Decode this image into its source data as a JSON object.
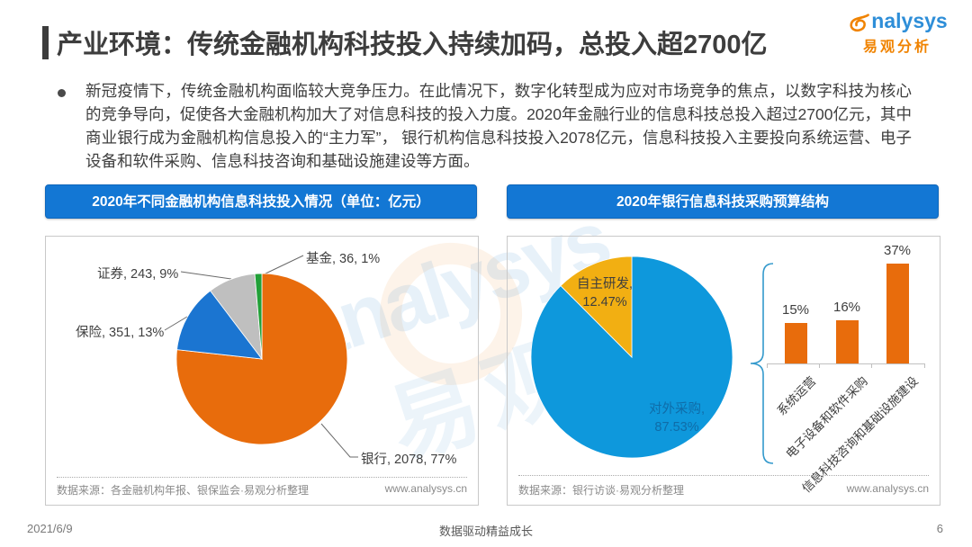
{
  "header": {
    "title": "产业环境：传统金融机构科技投入持续加码，总投入超2700亿",
    "logo": {
      "wordmark_tail": "nalysys",
      "wordmark_full": "analysys",
      "subtitle": "易观分析",
      "brand_blue": "#2E8ED8",
      "brand_orange": "#F08300"
    }
  },
  "summary": {
    "text": "新冠疫情下，传统金融机构面临较大竞争压力。在此情况下，数字化转型成为应对市场竞争的焦点，以数字科技为核心的竞争导向，促使各大金融机构加大了对信息科技的投入力度。2020年金融行业的信息科技总投入超过2700亿元，其中商业银行成为金融机构信息投入的“主力军”， 银行机构信息科技投入2078亿元，信息科技投入主要投向系统运营、电子设备和软件采购、信息科技咨询和基础设施建设等方面。"
  },
  "panels": {
    "left": {
      "header": "2020年不同金融机构信息科技投入情况（单位：亿元）",
      "labels": {
        "fund": "基金, 36, 1%",
        "securities": "证券, 243, 9%",
        "insurance": "保险, 351, 13%",
        "bank": "银行, 2078, 77%"
      },
      "source": "数据来源：各金融机构年报、银保监会·易观分析整理",
      "website": "www.analysys.cn"
    },
    "right": {
      "header": "2020年银行信息科技采购预算结构",
      "pie_labels": {
        "inhouse_name": "自主研发,",
        "inhouse_pct": "12.47%",
        "outsourced_name": "对外采购,",
        "outsourced_pct": "87.53%"
      },
      "source": "数据来源：银行访谈·易观分析整理",
      "website": "www.analysys.cn"
    }
  },
  "footer": {
    "date": "2021/6/9",
    "slogan": "数据驱动精益成长",
    "page_number": "6"
  },
  "watermark": {
    "word": "analysys",
    "word_cn": "易观"
  },
  "chart_data": [
    {
      "id": "left-pie",
      "type": "pie",
      "title": "2020年不同金融机构信息科技投入情况",
      "unit": "亿元",
      "categories": [
        "银行",
        "保险",
        "证券",
        "基金"
      ],
      "values": [
        2078,
        351,
        243,
        36
      ],
      "percents": [
        77,
        13,
        9,
        1
      ],
      "colors": [
        "#E86C0C",
        "#1B75D1",
        "#BFBFBF",
        "#21A038"
      ],
      "start_angle_deg": 0,
      "direction": "clockwise",
      "legend_position": "outside-labels"
    },
    {
      "id": "right-pie",
      "type": "pie",
      "title": "2020年银行信息科技采购预算结构",
      "unit": "%",
      "categories": [
        "对外采购",
        "自主研发"
      ],
      "values": [
        87.53,
        12.47
      ],
      "percents": [
        87.53,
        12.47
      ],
      "colors": [
        "#0E98DC",
        "#F2AF12"
      ],
      "start_angle_deg": 0,
      "direction": "clockwise",
      "legend_position": "inside-labels"
    },
    {
      "id": "right-bars",
      "type": "bar",
      "title": "对外采购结构",
      "unit": "%",
      "categories": [
        "系统运营",
        "电子设备和软件采购",
        "信息科技咨询和基础设施建设"
      ],
      "values": [
        15,
        16,
        37
      ],
      "value_labels": [
        "15%",
        "16%",
        "37%"
      ],
      "bar_color": "#E86C0C",
      "ylim": [
        0,
        40
      ],
      "grid": false
    }
  ]
}
